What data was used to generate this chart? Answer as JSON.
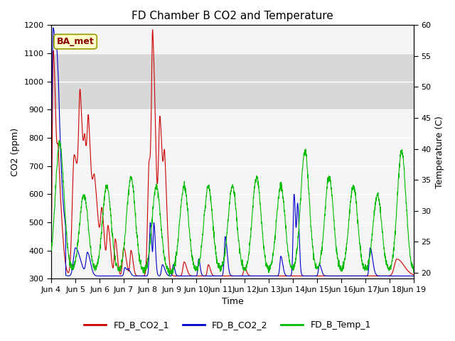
{
  "title": "FD Chamber B CO2 and Temperature",
  "xlabel": "Time",
  "ylabel_left": "CO2 (ppm)",
  "ylabel_right": "Temperature (C)",
  "ylim_left": [
    300,
    1200
  ],
  "ylim_right": [
    19,
    60
  ],
  "yticks_left": [
    300,
    400,
    500,
    600,
    700,
    800,
    900,
    1000,
    1100,
    1200
  ],
  "yticks_right": [
    20,
    25,
    30,
    35,
    40,
    45,
    50,
    55,
    60
  ],
  "legend_entries": [
    "FD_B_CO2_1",
    "FD_B_CO2_2",
    "FD_B_Temp_1"
  ],
  "colors": [
    "#cc0000",
    "#0000cc",
    "#00bb00"
  ],
  "annotation_text": "BA_met",
  "annotation_color": "#8b0000",
  "annotation_bg": "#ffffcc",
  "gray_band": [
    900,
    1100
  ],
  "title_fontsize": 11,
  "label_fontsize": 9,
  "tick_fontsize": 8,
  "background_color": "#ffffff",
  "plot_bg_color": "#f5f5f5"
}
